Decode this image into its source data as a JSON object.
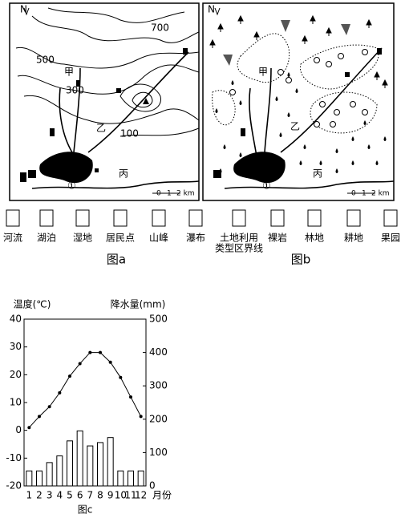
{
  "map_a": {
    "north": "N",
    "contours": [
      "700",
      "500",
      "300",
      "100"
    ],
    "places": [
      "甲",
      "乙",
      "丙",
      "①"
    ],
    "scale": [
      "0",
      "1",
      "2 km"
    ],
    "caption": "图a"
  },
  "map_b": {
    "north": "N",
    "places": [
      "甲",
      "乙",
      "丙",
      "①"
    ],
    "scale": [
      "0",
      "1",
      "2 km"
    ],
    "caption": "图b"
  },
  "legend": [
    [
      "河流"
    ],
    [
      "湖泊"
    ],
    [
      "湿地"
    ],
    [
      "居民点"
    ],
    [
      "山峰"
    ],
    [
      "瀑布"
    ],
    [
      "土地利用",
      "类型区界线"
    ],
    [
      "裸岩"
    ],
    [
      "林地"
    ],
    [
      "耕地"
    ],
    [
      "果园"
    ]
  ],
  "chart_data": {
    "type": "climate",
    "caption": "图c",
    "ylabel": "温度(℃)",
    "y2label": "降水量(mm)",
    "xlabel": "月份",
    "categories": [
      "1",
      "2",
      "3",
      "4",
      "5",
      "6",
      "7",
      "8",
      "9",
      "10",
      "11",
      "12"
    ],
    "series": [
      {
        "type": "line",
        "color": "#000000",
        "values": [
          1,
          5,
          8.5,
          13.5,
          19.5,
          24,
          28,
          28,
          24.5,
          19,
          12,
          5
        ]
      },
      {
        "type": "bar",
        "axis": "y2",
        "color": "#ffffff",
        "values": [
          45,
          45,
          70,
          90,
          135,
          165,
          120,
          130,
          145,
          45,
          45,
          45
        ]
      }
    ],
    "ylim": [
      -20,
      40
    ],
    "yticks": [
      -20,
      -10,
      0,
      10,
      20,
      30,
      40
    ],
    "y2lim": [
      0,
      500
    ],
    "y2ticks": [
      0,
      100,
      200,
      300,
      400,
      500
    ]
  }
}
